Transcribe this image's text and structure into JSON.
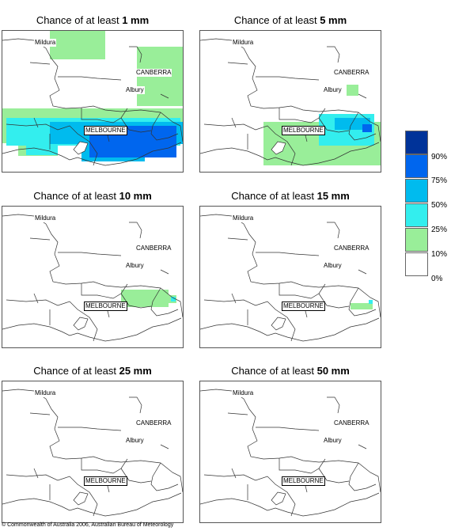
{
  "title_prefix": "Chance of at least",
  "panels": [
    {
      "amount": "1 mm"
    },
    {
      "amount": "5 mm"
    },
    {
      "amount": "10 mm"
    },
    {
      "amount": "15 mm"
    },
    {
      "amount": "25 mm"
    },
    {
      "amount": "50 mm"
    }
  ],
  "cities": {
    "mildura": "Mildura",
    "canberra": "CANBERRA",
    "albury": "Albury",
    "melbourne": "MELBOURNE"
  },
  "legend": {
    "ticks": [
      "90%",
      "75%",
      "50%",
      "25%",
      "10%",
      "0%"
    ],
    "colors": [
      "#003399",
      "#0066ee",
      "#00bbee",
      "#33eeee",
      "#99ee99",
      "#ffffff"
    ]
  },
  "copyright": "© Commonwealth of Australia 2006, Australian Bureau of Meteorology"
}
